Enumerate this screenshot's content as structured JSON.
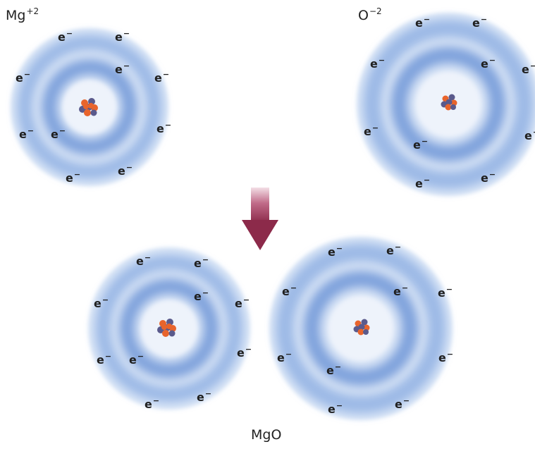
{
  "labels": {
    "mg_ion": {
      "symbol": "Mg",
      "charge": "+2"
    },
    "o_ion": {
      "symbol": "O",
      "charge": "−2"
    },
    "compound": "MgO"
  },
  "electron": {
    "symbol": "e",
    "charge": "−"
  },
  "atoms": [
    {
      "name": "mg-ion-top",
      "electron_count": 10
    },
    {
      "name": "o-ion-top",
      "electron_count": 10
    },
    {
      "name": "mg-ion-bottom",
      "electron_count": 10
    },
    {
      "name": "o-ion-bottom",
      "electron_count": 10
    }
  ],
  "colors": {
    "shell": "#8fb0e0",
    "nucleus_proton": "#e8642c",
    "nucleus_neutron": "#5a5a8c",
    "arrow": "#8c2a4a"
  }
}
